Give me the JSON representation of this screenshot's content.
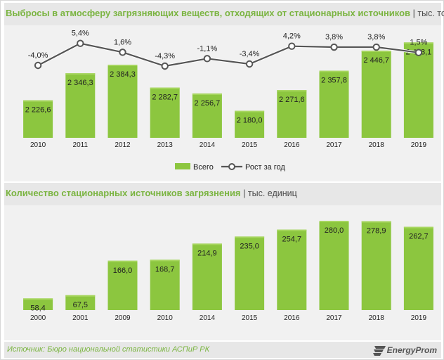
{
  "chart_data": [
    {
      "type": "bar",
      "title": "Выбросы в атмосферу загрязняющих веществ, отходящих от стационарных источников",
      "unit": "тыс. тонн",
      "categories": [
        "2010",
        "2011",
        "2012",
        "2013",
        "2014",
        "2015",
        "2016",
        "2017",
        "2018",
        "2019"
      ],
      "series": [
        {
          "name": "Всего",
          "type": "bar",
          "values": [
            2226.6,
            2346.3,
            2384.3,
            2282.7,
            2256.7,
            2180.0,
            2271.6,
            2357.8,
            2446.7,
            2483.1
          ],
          "labels": [
            "2 226,6",
            "2 346,3",
            "2 384,3",
            "2 282,7",
            "2 256,7",
            "2 180,0",
            "2 271,6",
            "2 357,8",
            "2 446,7",
            "2 483,1"
          ]
        },
        {
          "name": "Рост за год",
          "type": "line",
          "values": [
            -4.0,
            5.4,
            1.6,
            -4.3,
            -1.1,
            -3.4,
            4.2,
            3.8,
            3.8,
            1.5
          ],
          "labels": [
            "-4,0%",
            "5,4%",
            "1,6%",
            "-4,3%",
            "-1,1%",
            "-3,4%",
            "4,2%",
            "3,8%",
            "3,8%",
            "1,5%"
          ]
        }
      ],
      "legend": {
        "position": "bottom",
        "items": [
          "Всего",
          "Рост за год"
        ]
      },
      "grid": false
    },
    {
      "type": "bar",
      "title": "Количество стационарных источников загрязнения",
      "unit": "тыс. единиц",
      "categories": [
        "2000",
        "2001",
        "2009",
        "2010",
        "2014",
        "2015",
        "2016",
        "2017",
        "2018",
        "2019"
      ],
      "series": [
        {
          "values": [
            58.4,
            67.5,
            166.0,
            168.7,
            214.9,
            235.0,
            254.7,
            280.0,
            278.9,
            262.7
          ],
          "labels": [
            "58,4",
            "67,5",
            "166,0",
            "168,7",
            "214,9",
            "235,0",
            "254,7",
            "280,0",
            "278,9",
            "262,7"
          ]
        }
      ],
      "grid": false
    }
  ],
  "source": "Источник: Бюро национальной  статистики АСПиР РК",
  "logo": "EnergyProm",
  "colors": {
    "bar": "#8cc63f",
    "bar_top": "#a7d65f",
    "line": "#ffffff",
    "line_stroke": "#555555",
    "title": "#7ab440",
    "panel": "#f1f1f1",
    "header": "#e7e7e7"
  }
}
